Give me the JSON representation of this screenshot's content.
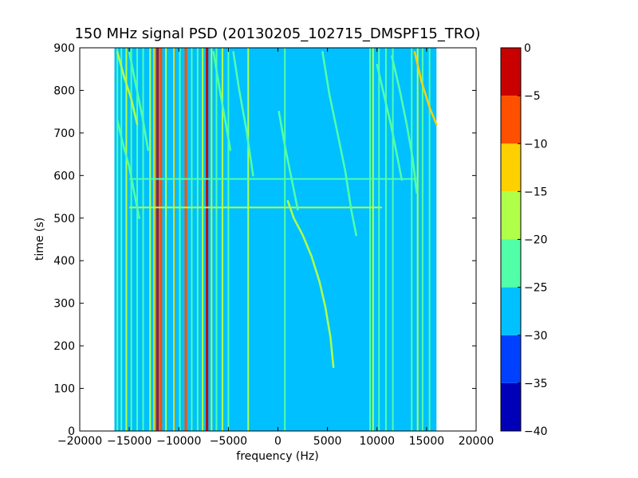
{
  "chart_data": {
    "type": "heatmap",
    "title": "150 MHz signal PSD (20130205_102715_DMSPF15_TRO)",
    "xlabel": "frequency (Hz)",
    "ylabel": "time (s)",
    "xlim": [
      -20000,
      20000
    ],
    "ylim": [
      0,
      900
    ],
    "data_extent_x": [
      -16500,
      16000
    ],
    "x_ticks": [
      -20000,
      -15000,
      -10000,
      -5000,
      0,
      5000,
      10000,
      15000,
      20000
    ],
    "x_tick_labels": [
      "−20000",
      "−15000",
      "−10000",
      "−5000",
      "0",
      "5000",
      "10000",
      "15000",
      "20000"
    ],
    "y_ticks": [
      0,
      100,
      200,
      300,
      400,
      500,
      600,
      700,
      800,
      900
    ],
    "y_tick_labels": [
      "0",
      "100",
      "200",
      "300",
      "400",
      "500",
      "600",
      "700",
      "800",
      "900"
    ],
    "colorbar": {
      "range": [
        -40,
        0
      ],
      "ticks": [
        0,
        -5,
        -10,
        -15,
        -20,
        -25,
        -30,
        -35,
        -40
      ],
      "tick_labels": [
        "0",
        "−5",
        "−10",
        "−15",
        "−20",
        "−25",
        "−30",
        "−35",
        "−40"
      ],
      "colors": [
        "#0000b8",
        "#0040ff",
        "#00c0ff",
        "#50ffa8",
        "#b0ff48",
        "#ffd000",
        "#ff5000",
        "#c80000"
      ]
    },
    "background_level": -27.5,
    "vertical_lines": [
      {
        "x": -16200,
        "level": -22.5
      },
      {
        "x": -15800,
        "level": -22.5
      },
      {
        "x": -15300,
        "level": -17.5
      },
      {
        "x": -14800,
        "level": -22.5
      },
      {
        "x": -14200,
        "level": -22.5
      },
      {
        "x": -13600,
        "level": -22.5
      },
      {
        "x": -12900,
        "level": -17.5
      },
      {
        "x": -12500,
        "level": -12.5
      },
      {
        "x": -12150,
        "level": -2.5
      },
      {
        "x": -11800,
        "level": -7.5
      },
      {
        "x": -11300,
        "level": -17.5
      },
      {
        "x": -10500,
        "level": -12.5
      },
      {
        "x": -9900,
        "level": -22.5
      },
      {
        "x": -9300,
        "level": -7.5
      },
      {
        "x": -8700,
        "level": -22.5
      },
      {
        "x": -8100,
        "level": -22.5
      },
      {
        "x": -7600,
        "level": -17.5
      },
      {
        "x": -7150,
        "level": -2.5
      },
      {
        "x": -6700,
        "level": -17.5
      },
      {
        "x": -6200,
        "level": -22.5
      },
      {
        "x": -5600,
        "level": -17.5
      },
      {
        "x": -5000,
        "level": -22.5
      },
      {
        "x": -3000,
        "level": -17.5
      },
      {
        "x": 700,
        "level": -22.5
      },
      {
        "x": 9300,
        "level": -22.5
      },
      {
        "x": 9600,
        "level": -17.5
      },
      {
        "x": 10200,
        "level": -22.5
      },
      {
        "x": 10900,
        "level": -22.5
      },
      {
        "x": 11600,
        "level": -22.5
      },
      {
        "x": 13500,
        "level": -22.5
      },
      {
        "x": 14100,
        "level": -17.5
      },
      {
        "x": 14600,
        "level": -22.5
      },
      {
        "x": 15300,
        "level": -22.5
      }
    ],
    "tracks": [
      {
        "level": -17.5,
        "points": [
          [
            -16200,
            890
          ],
          [
            -15500,
            830
          ],
          [
            -14800,
            780
          ],
          [
            -14200,
            720
          ]
        ]
      },
      {
        "level": -22.5,
        "points": [
          [
            -16200,
            730
          ],
          [
            -15700,
            680
          ],
          [
            -15000,
            620
          ],
          [
            -14500,
            560
          ],
          [
            -14000,
            500
          ]
        ]
      },
      {
        "level": -22.5,
        "points": [
          [
            -15000,
            890
          ],
          [
            -14400,
            820
          ],
          [
            -13700,
            740
          ],
          [
            -13100,
            660
          ]
        ]
      },
      {
        "level": -22.5,
        "points": [
          [
            -6500,
            890
          ],
          [
            -6000,
            820
          ],
          [
            -5400,
            740
          ],
          [
            -4800,
            660
          ]
        ]
      },
      {
        "level": -22.5,
        "points": [
          [
            -4500,
            890
          ],
          [
            -3900,
            800
          ],
          [
            -3200,
            710
          ],
          [
            -2500,
            600
          ]
        ]
      },
      {
        "level": -22.5,
        "points": [
          [
            100,
            750
          ],
          [
            700,
            670
          ],
          [
            1400,
            590
          ],
          [
            2000,
            520
          ]
        ]
      },
      {
        "level": -17.5,
        "points": [
          [
            1000,
            540
          ],
          [
            1600,
            500
          ],
          [
            2500,
            460
          ],
          [
            3400,
            410
          ],
          [
            4200,
            350
          ],
          [
            4800,
            290
          ],
          [
            5300,
            220
          ],
          [
            5600,
            150
          ]
        ]
      },
      {
        "level": -22.5,
        "points": [
          [
            4500,
            890
          ],
          [
            5200,
            790
          ],
          [
            6100,
            690
          ],
          [
            6800,
            610
          ],
          [
            7400,
            520
          ],
          [
            7900,
            460
          ]
        ]
      },
      {
        "level": -22.5,
        "points": [
          [
            10000,
            860
          ],
          [
            10700,
            790
          ],
          [
            11400,
            720
          ],
          [
            12000,
            650
          ],
          [
            12500,
            590
          ]
        ]
      },
      {
        "level": -22.5,
        "points": [
          [
            11500,
            880
          ],
          [
            12300,
            800
          ],
          [
            13000,
            720
          ],
          [
            13600,
            640
          ],
          [
            14000,
            560
          ]
        ]
      },
      {
        "level": -12.5,
        "points": [
          [
            13800,
            890
          ],
          [
            14500,
            820
          ],
          [
            15300,
            760
          ],
          [
            16000,
            720
          ]
        ]
      }
    ],
    "horizontal_lines": [
      {
        "y": 525,
        "x_range": [
          -15000,
          10500
        ],
        "level": -17.5
      },
      {
        "y": 592,
        "x_range": [
          -15000,
          14000
        ],
        "level": -22.5
      }
    ]
  }
}
